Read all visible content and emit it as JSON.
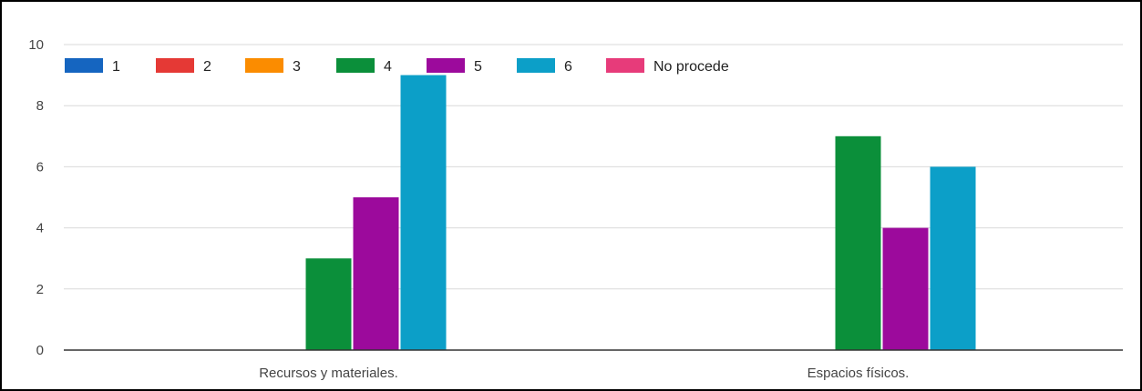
{
  "chart_data": {
    "type": "bar",
    "categories": [
      "Recursos y materiales.",
      "Espacios físicos."
    ],
    "series": [
      {
        "name": "1",
        "color": "#1565c0",
        "values": [
          0,
          0
        ]
      },
      {
        "name": "2",
        "color": "#e53935",
        "values": [
          0,
          0
        ]
      },
      {
        "name": "3",
        "color": "#fb8c00",
        "values": [
          0,
          0
        ]
      },
      {
        "name": "4",
        "color": "#0b8f3a",
        "values": [
          3,
          7
        ]
      },
      {
        "name": "5",
        "color": "#9c0a9c",
        "values": [
          5,
          4
        ]
      },
      {
        "name": "6",
        "color": "#0c9fc8",
        "values": [
          9,
          6
        ]
      },
      {
        "name": "No procede",
        "color": "#e73b7a",
        "values": [
          0,
          0
        ]
      }
    ],
    "ylim": [
      0,
      10
    ],
    "yticks": [
      0,
      2,
      4,
      6,
      8,
      10
    ],
    "grid": true,
    "legend": "top-left"
  }
}
